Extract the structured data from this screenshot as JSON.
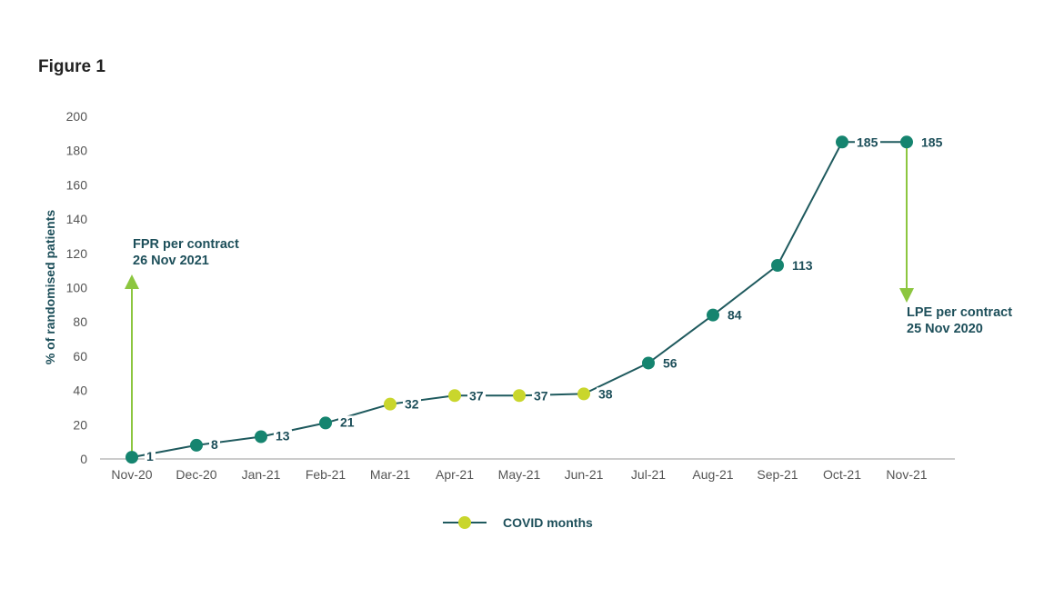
{
  "chart_data": {
    "type": "line",
    "title": "Figure 1",
    "xlabel": "",
    "ylabel": "% of randomised patients",
    "ylim": [
      0,
      200
    ],
    "yticks": [
      0,
      20,
      40,
      60,
      80,
      100,
      120,
      140,
      160,
      180,
      200
    ],
    "categories": [
      "Nov-20",
      "Dec-20",
      "Jan-21",
      "Feb-21",
      "Mar-21",
      "Apr-21",
      "May-21",
      "Jun-21",
      "Jul-21",
      "Aug-21",
      "Sep-21",
      "Oct-21",
      "Nov-21"
    ],
    "values": [
      1,
      8,
      13,
      21,
      32,
      37,
      37,
      38,
      56,
      84,
      113,
      185,
      185
    ],
    "covid_months": [
      false,
      false,
      false,
      false,
      true,
      true,
      true,
      true,
      false,
      false,
      false,
      false,
      false
    ],
    "legend": {
      "label": "COVID months",
      "placement": "bottom-center"
    },
    "annotations": [
      {
        "category": "Nov-20",
        "direction": "up",
        "lines": [
          "FPR per contract",
          "26 Nov 2021"
        ]
      },
      {
        "category": "Nov-21",
        "direction": "down",
        "lines": [
          "LPE per contract",
          "25 Nov 2020"
        ]
      }
    ],
    "grid": false
  },
  "colors": {
    "line": "#1f5a5e",
    "point": "#15846f",
    "covid_point": "#c9d62c",
    "arrow": "#8cc63f",
    "text": "#1d4f5a"
  }
}
